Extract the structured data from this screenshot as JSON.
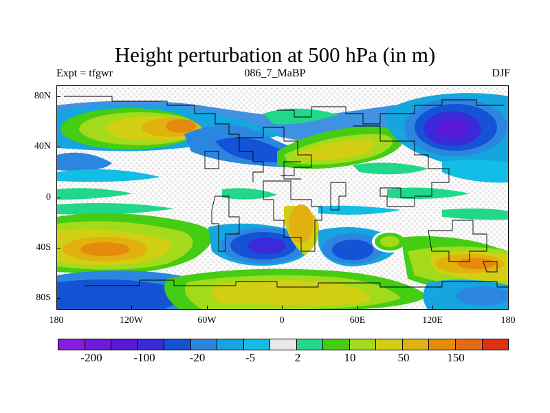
{
  "title": "Height perturbation at 500 hPa (in m)",
  "subtitle_left": "Expt = tfgwr",
  "subtitle_center": "086_7_MaBP",
  "subtitle_right": "DJF",
  "map": {
    "y_ticks": [
      "80N",
      "40N",
      "0",
      "40S",
      "80S"
    ],
    "x_ticks": [
      "180",
      "120W",
      "60W",
      "0",
      "60E",
      "120E",
      "180"
    ]
  },
  "colorbar": {
    "colors": [
      "#8a1ce0",
      "#7119df",
      "#5a18d9",
      "#3a2ad8",
      "#1553d6",
      "#2b86e0",
      "#15a5df",
      "#12bde6",
      "#e8e8e8",
      "#20d78a",
      "#44cd12",
      "#a3da1b",
      "#d2cf13",
      "#e0b10f",
      "#e48b0c",
      "#e36a16",
      "#e22f0e"
    ],
    "labels": [
      "-200",
      "-100",
      "-20",
      "-5",
      "2",
      "10",
      "50",
      "150"
    ]
  },
  "chart_data": {
    "type": "heatmap",
    "title": "Height perturbation at 500 hPa (in m)",
    "subtitle": "086_7_MaBP",
    "experiment": "Expt = tfgwr",
    "season": "DJF",
    "xlabel": "",
    "ylabel": "",
    "x_ticks": [
      "180",
      "120W",
      "60W",
      "0",
      "60E",
      "120E",
      "180"
    ],
    "y_ticks": [
      "80N",
      "40N",
      "0",
      "40S",
      "80S"
    ],
    "xlim": [
      -180,
      180
    ],
    "ylim": [
      -90,
      90
    ],
    "contour_levels": [
      -200,
      -100,
      -20,
      -5,
      2,
      10,
      50,
      150
    ],
    "colorbar_labels": [
      "-200",
      "-100",
      "-20",
      "-5",
      "2",
      "10",
      "50",
      "150"
    ],
    "features": [
      {
        "lon": -140,
        "lat": 50,
        "value": 80
      },
      {
        "lon": -90,
        "lat": 30,
        "value": -20
      },
      {
        "lon": 20,
        "lat": 40,
        "value": 50
      },
      {
        "lon": 130,
        "lat": 50,
        "value": -150
      },
      {
        "lon": -150,
        "lat": -40,
        "value": 50
      },
      {
        "lon": -10,
        "lat": -40,
        "value": -60
      },
      {
        "lon": 50,
        "lat": -45,
        "value": -40
      },
      {
        "lon": 150,
        "lat": -50,
        "value": 80
      },
      {
        "lon": 0,
        "lat": -75,
        "value": 50
      },
      {
        "lon": 90,
        "lat": -35,
        "value": 15
      }
    ]
  }
}
